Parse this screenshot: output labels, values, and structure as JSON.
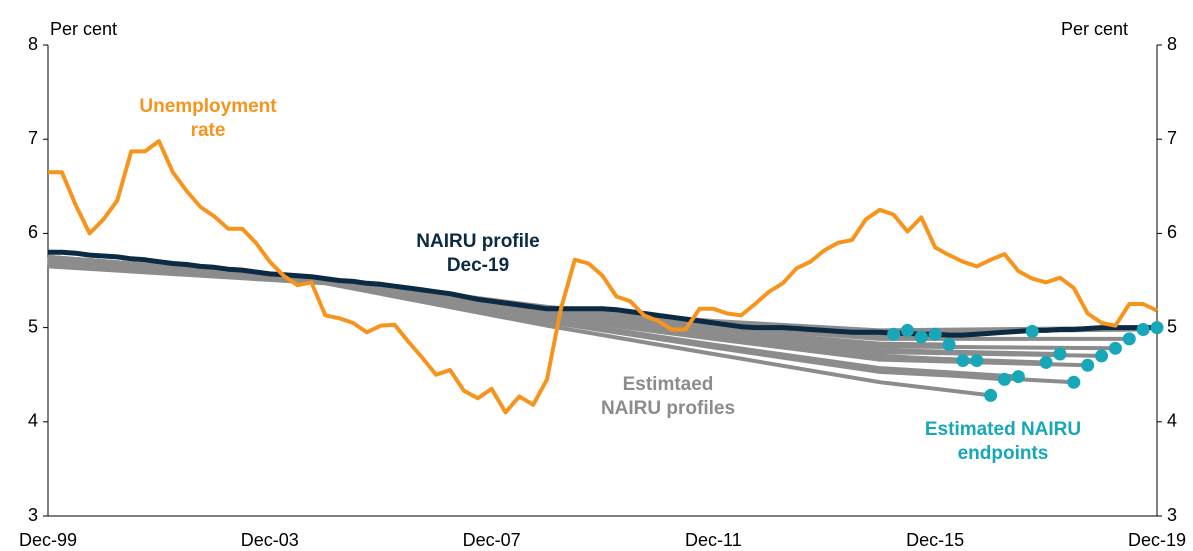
{
  "chart_data": {
    "type": "line",
    "ylabel": "Per cent",
    "y2label": "Per cent",
    "ylim": [
      3,
      8
    ],
    "yticks": [
      3,
      4,
      5,
      6,
      7,
      8
    ],
    "y2lim": [
      3,
      8
    ],
    "y2ticks": [
      3,
      4,
      5,
      6,
      7,
      8
    ],
    "categories": [
      "Dec-99",
      null,
      null,
      null,
      null,
      null,
      null,
      null,
      null,
      null,
      null,
      null,
      null,
      null,
      null,
      null,
      "Dec-03",
      null,
      null,
      null,
      null,
      null,
      null,
      null,
      null,
      null,
      null,
      null,
      null,
      null,
      null,
      null,
      "Dec-07",
      null,
      null,
      null,
      null,
      null,
      null,
      null,
      null,
      null,
      null,
      null,
      null,
      null,
      null,
      null,
      "Dec-11",
      null,
      null,
      null,
      null,
      null,
      null,
      null,
      null,
      null,
      null,
      null,
      null,
      null,
      null,
      null,
      "Dec-15",
      null,
      null,
      null,
      null,
      null,
      null,
      null,
      null,
      null,
      null,
      null,
      null,
      null,
      null,
      null,
      "Dec-19"
    ],
    "series": [
      {
        "color": "#0b2a44",
        "values": [
          5.8,
          5.8,
          5.79,
          5.77,
          5.76,
          5.75,
          5.73,
          5.72,
          5.7,
          5.68,
          5.67,
          5.65,
          5.64,
          5.62,
          5.61,
          5.59,
          5.57,
          5.56,
          5.55,
          5.54,
          5.52,
          5.5,
          5.49,
          5.47,
          5.46,
          5.44,
          5.42,
          5.4,
          5.38,
          5.36,
          5.33,
          5.3,
          5.28,
          5.26,
          5.24,
          5.22,
          5.2,
          5.2,
          5.2,
          5.2,
          5.2,
          5.19,
          5.17,
          5.15,
          5.13,
          5.11,
          5.09,
          5.07,
          5.05,
          5.03,
          5.01,
          5.0,
          5.0,
          5.0,
          4.99,
          4.98,
          4.97,
          4.96,
          4.95,
          4.95,
          4.95,
          4.94,
          4.94,
          4.93,
          4.93,
          4.92,
          4.92,
          4.93,
          4.94,
          4.95,
          4.96,
          4.97,
          4.97,
          4.98,
          4.98,
          4.99,
          5.0,
          5.0,
          5.0,
          5.0,
          5.0
        ]
      },
      {
        "color": "#f7941d",
        "values": [
          6.65,
          6.65,
          6.3,
          6.0,
          6.15,
          6.35,
          6.87,
          6.87,
          6.98,
          6.65,
          6.45,
          6.28,
          6.18,
          6.05,
          6.05,
          5.9,
          5.7,
          5.55,
          5.45,
          5.48,
          5.13,
          5.1,
          5.05,
          4.95,
          5.02,
          5.03,
          4.85,
          4.68,
          4.5,
          4.55,
          4.33,
          4.25,
          4.35,
          4.1,
          4.27,
          4.18,
          4.45,
          5.2,
          5.72,
          5.68,
          5.55,
          5.33,
          5.28,
          5.13,
          5.07,
          4.98,
          4.98,
          5.2,
          5.2,
          5.15,
          5.13,
          5.25,
          5.38,
          5.47,
          5.63,
          5.7,
          5.82,
          5.9,
          5.93,
          6.15,
          6.25,
          6.2,
          6.02,
          6.17,
          5.85,
          5.77,
          5.7,
          5.65,
          5.72,
          5.78,
          5.6,
          5.52,
          5.48,
          5.53,
          5.42,
          5.15,
          5.05,
          5.02,
          5.25,
          5.25,
          5.18
        ]
      }
    ],
    "profiles_color": "#8c8c8c",
    "profiles": [
      {
        "x": [
          0,
          20,
          36,
          48,
          60,
          61
        ],
        "values": [
          5.74,
          5.52,
          5.2,
          5.04,
          4.92,
          4.93
        ]
      },
      {
        "x": [
          0,
          20,
          36,
          48,
          60,
          62
        ],
        "values": [
          5.75,
          5.52,
          5.21,
          5.06,
          4.95,
          4.97
        ]
      },
      {
        "x": [
          0,
          20,
          36,
          48,
          60,
          63
        ],
        "values": [
          5.74,
          5.51,
          5.19,
          5.02,
          4.89,
          4.9
        ]
      },
      {
        "x": [
          0,
          20,
          36,
          48,
          60,
          64
        ],
        "values": [
          5.74,
          5.52,
          5.2,
          5.04,
          4.92,
          4.93
        ]
      },
      {
        "x": [
          0,
          20,
          36,
          48,
          60,
          65
        ],
        "values": [
          5.73,
          5.51,
          5.17,
          4.98,
          4.83,
          4.82
        ]
      },
      {
        "x": [
          0,
          20,
          36,
          48,
          60,
          66
        ],
        "values": [
          5.7,
          5.5,
          5.12,
          4.9,
          4.7,
          4.65
        ]
      },
      {
        "x": [
          0,
          20,
          36,
          48,
          60,
          67
        ],
        "values": [
          5.7,
          5.5,
          5.12,
          4.9,
          4.7,
          4.65
        ]
      },
      {
        "x": [
          0,
          20,
          36,
          48,
          60,
          68
        ],
        "values": [
          5.65,
          5.47,
          5.02,
          4.72,
          4.42,
          4.28
        ]
      },
      {
        "x": [
          0,
          20,
          36,
          48,
          60,
          69
        ],
        "values": [
          5.67,
          5.48,
          5.07,
          4.8,
          4.55,
          4.45
        ]
      },
      {
        "x": [
          0,
          20,
          36,
          48,
          60,
          70
        ],
        "values": [
          5.68,
          5.48,
          5.08,
          4.82,
          4.57,
          4.48
        ]
      },
      {
        "x": [
          0,
          20,
          36,
          48,
          60,
          71
        ],
        "values": [
          5.74,
          5.52,
          5.21,
          5.05,
          4.94,
          4.96
        ]
      },
      {
        "x": [
          0,
          20,
          36,
          48,
          60,
          72
        ],
        "values": [
          5.7,
          5.49,
          5.12,
          4.89,
          4.69,
          4.63
        ]
      },
      {
        "x": [
          0,
          20,
          36,
          48,
          60,
          73
        ],
        "values": [
          5.71,
          5.5,
          5.14,
          4.93,
          4.76,
          4.72
        ]
      },
      {
        "x": [
          0,
          20,
          36,
          48,
          60,
          74
        ],
        "values": [
          5.67,
          5.48,
          5.06,
          4.79,
          4.53,
          4.42
        ]
      },
      {
        "x": [
          0,
          20,
          36,
          48,
          60,
          75
        ],
        "values": [
          5.69,
          5.49,
          5.11,
          4.88,
          4.66,
          4.6
        ]
      },
      {
        "x": [
          0,
          20,
          36,
          48,
          60,
          76
        ],
        "values": [
          5.71,
          5.5,
          5.14,
          4.92,
          4.74,
          4.7
        ]
      },
      {
        "x": [
          0,
          20,
          36,
          48,
          60,
          77
        ],
        "values": [
          5.72,
          5.5,
          5.16,
          4.96,
          4.8,
          4.78
        ]
      },
      {
        "x": [
          0,
          20,
          36,
          48,
          60,
          78
        ],
        "values": [
          5.73,
          5.51,
          5.19,
          5.01,
          4.88,
          4.88
        ]
      },
      {
        "x": [
          0,
          20,
          36,
          48,
          60,
          79
        ],
        "values": [
          5.75,
          5.52,
          5.21,
          5.06,
          4.95,
          4.98
        ]
      },
      {
        "x": [
          0,
          20,
          36,
          48,
          60,
          80
        ],
        "values": [
          5.75,
          5.52,
          5.22,
          5.07,
          4.97,
          5.0
        ]
      }
    ],
    "endpoints": {
      "color": "#17a7b8",
      "values": [
        null,
        null,
        null,
        null,
        null,
        null,
        null,
        null,
        null,
        null,
        null,
        null,
        null,
        null,
        null,
        null,
        null,
        null,
        null,
        null,
        null,
        null,
        null,
        null,
        null,
        null,
        null,
        null,
        null,
        null,
        null,
        null,
        null,
        null,
        null,
        null,
        null,
        null,
        null,
        null,
        null,
        null,
        null,
        null,
        null,
        null,
        null,
        null,
        null,
        null,
        null,
        null,
        null,
        null,
        null,
        null,
        null,
        null,
        null,
        null,
        null,
        4.93,
        4.97,
        4.9,
        4.93,
        4.82,
        4.65,
        4.65,
        4.28,
        4.45,
        4.48,
        4.96,
        4.63,
        4.72,
        4.42,
        4.6,
        4.7,
        4.78,
        4.88,
        4.98,
        5.0
      ]
    },
    "annotations": [
      {
        "lines": [
          "Unemployment",
          "rate"
        ],
        "color": "#f7941d"
      },
      {
        "lines": [
          "NAIRU profile",
          "Dec-19"
        ],
        "color": "#0b2a44"
      },
      {
        "lines": [
          "Estimtaed",
          "NAIRU profiles"
        ],
        "color": "#8c8c8c"
      },
      {
        "lines": [
          "Estimated NAIRU",
          "endpoints"
        ],
        "color": "#17a7b8"
      }
    ]
  }
}
